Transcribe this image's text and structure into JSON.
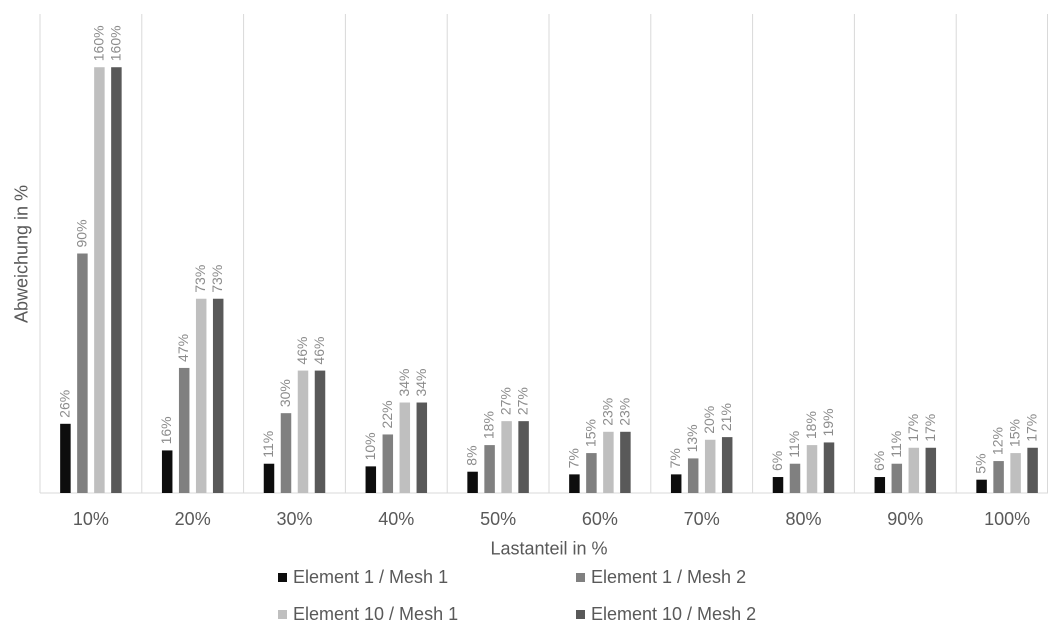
{
  "chart_data": {
    "type": "bar",
    "categories": [
      "10%",
      "20%",
      "30%",
      "40%",
      "50%",
      "60%",
      "70%",
      "80%",
      "90%",
      "100%"
    ],
    "series": [
      {
        "name": "Element 1 / Mesh 1",
        "color": "#0d0d0d",
        "values": [
          26,
          16,
          11,
          10,
          8,
          7,
          7,
          6,
          6,
          5
        ],
        "labels": [
          "26%",
          "16%",
          "11%",
          "10%",
          "8%",
          "7%",
          "7%",
          "6%",
          "6%",
          "5%"
        ]
      },
      {
        "name": "Element 1 / Mesh 2",
        "color": "#808080",
        "values": [
          90,
          47,
          30,
          22,
          18,
          15,
          13,
          11,
          11,
          12
        ],
        "labels": [
          "90%",
          "47%",
          "30%",
          "22%",
          "18%",
          "15%",
          "13%",
          "11%",
          "11%",
          "12%"
        ]
      },
      {
        "name": "Element 10 / Mesh 1",
        "color": "#bfbfbf",
        "values": [
          160,
          73,
          46,
          34,
          27,
          23,
          20,
          18,
          17,
          15
        ],
        "labels": [
          "160%",
          "73%",
          "46%",
          "34%",
          "27%",
          "23%",
          "20%",
          "18%",
          "17%",
          "15%"
        ]
      },
      {
        "name": "Element 10 / Mesh 2",
        "color": "#595959",
        "values": [
          160,
          73,
          46,
          34,
          27,
          23,
          21,
          19,
          17,
          17
        ],
        "labels": [
          "160%",
          "73%",
          "46%",
          "34%",
          "27%",
          "23%",
          "21%",
          "19%",
          "17%",
          "17%"
        ]
      }
    ],
    "xlabel": "Lastanteil in %",
    "ylabel": "Abweichung in %",
    "ylim": [
      0,
      180
    ],
    "grid": "vertical category separators",
    "legend": "bottom"
  }
}
